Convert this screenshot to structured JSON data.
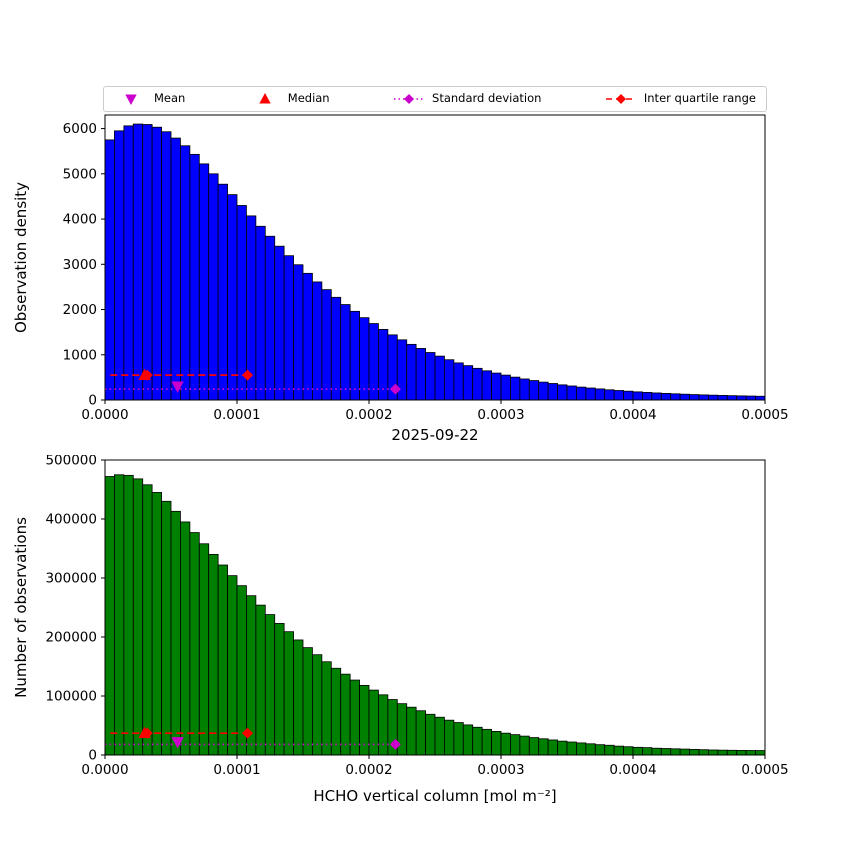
{
  "figure": {
    "date_title": "2025-09-22",
    "xlabel": "HCHO vertical column [mol m⁻²]",
    "legend": [
      {
        "label": "Mean",
        "type": "triangle-down",
        "color": "#cc00cc"
      },
      {
        "label": "Median",
        "type": "triangle-up",
        "color": "#ff0000"
      },
      {
        "label": "Standard deviation",
        "type": "diamond-dotted",
        "color": "#cc00cc"
      },
      {
        "label": "Inter quartile range",
        "type": "diamond-dashed",
        "color": "#ff0000"
      }
    ]
  },
  "chart_data": [
    {
      "type": "bar",
      "title": "",
      "xlabel": "",
      "ylabel": "Observation density",
      "bar_color": "#0000ff",
      "bar_edge": "#000000",
      "grid": false,
      "xlim": [
        0,
        0.0005
      ],
      "ylim": [
        0,
        6300
      ],
      "bin_start": 0,
      "bin_width": 7.1428571e-06,
      "values": [
        5750,
        5950,
        6060,
        6100,
        6090,
        6030,
        5930,
        5790,
        5620,
        5430,
        5220,
        5000,
        4770,
        4540,
        4300,
        4070,
        3840,
        3620,
        3400,
        3190,
        2990,
        2800,
        2610,
        2440,
        2270,
        2110,
        1960,
        1820,
        1690,
        1560,
        1440,
        1330,
        1230,
        1140,
        1050,
        970,
        890,
        820,
        760,
        700,
        645,
        595,
        550,
        505,
        465,
        430,
        395,
        365,
        335,
        310,
        285,
        265,
        245,
        225,
        210,
        195,
        180,
        168,
        156,
        146,
        137,
        128,
        120,
        113,
        107,
        101,
        96,
        91,
        87,
        83
      ],
      "x_ticks": [
        0,
        0.0001,
        0.0002,
        0.0003,
        0.0004,
        0.0005
      ],
      "x_tick_labels": [
        "0.0000",
        "0.0001",
        "0.0002",
        "0.0003",
        "0.0004",
        "0.0005"
      ],
      "y_ticks": [
        0,
        1000,
        2000,
        3000,
        4000,
        5000,
        6000
      ],
      "y_tick_labels": [
        "0",
        "1000",
        "2000",
        "3000",
        "4000",
        "5000",
        "6000"
      ],
      "markers": {
        "mean": {
          "x": 5.5e-05,
          "y": 300,
          "color": "#cc00cc"
        },
        "median": {
          "x": 3e-05,
          "y": 550,
          "color": "#ff0000"
        },
        "std": {
          "y": 240,
          "x1": 0.0,
          "x2": 0.00022,
          "diamonds": [
            0.00022
          ],
          "color": "#cc00cc"
        },
        "iqr": {
          "y": 550,
          "x1": 4e-06,
          "x2": 0.000108,
          "diamonds": [
            3.2e-05,
            0.000108
          ],
          "color": "#ff0000"
        }
      }
    },
    {
      "type": "bar",
      "title": "",
      "xlabel": "HCHO vertical column [mol m⁻²]",
      "ylabel": "Number of observations",
      "bar_color": "#008000",
      "bar_edge": "#000000",
      "grid": false,
      "xlim": [
        0,
        0.0005
      ],
      "ylim": [
        0,
        500000
      ],
      "bin_start": 0,
      "bin_width": 7.1428571e-06,
      "values": [
        472000,
        475000,
        474000,
        468000,
        458000,
        445000,
        430000,
        413000,
        395000,
        377000,
        358000,
        340000,
        322000,
        304000,
        287000,
        270000,
        254000,
        238000,
        223000,
        209000,
        195000,
        182000,
        170000,
        158000,
        147000,
        137000,
        127000,
        118000,
        110000,
        102000,
        94000,
        87000,
        81000,
        75000,
        69000,
        64000,
        59000,
        55000,
        51000,
        47000,
        43500,
        40000,
        37000,
        34500,
        32000,
        29500,
        27500,
        25500,
        23500,
        22000,
        20500,
        19000,
        17500,
        16500,
        15000,
        14000,
        13000,
        12500,
        11500,
        11000,
        10500,
        10000,
        9500,
        9000,
        8500,
        8200,
        8000,
        7800,
        7600,
        7500
      ],
      "x_ticks": [
        0,
        0.0001,
        0.0002,
        0.0003,
        0.0004,
        0.0005
      ],
      "x_tick_labels": [
        "0.0000",
        "0.0001",
        "0.0002",
        "0.0003",
        "0.0004",
        "0.0005"
      ],
      "y_ticks": [
        0,
        100000,
        200000,
        300000,
        400000,
        500000
      ],
      "y_tick_labels": [
        "0",
        "100000",
        "200000",
        "300000",
        "400000",
        "500000"
      ],
      "markers": {
        "mean": {
          "x": 5.5e-05,
          "y": 22000,
          "color": "#cc00cc"
        },
        "median": {
          "x": 3e-05,
          "y": 37000,
          "color": "#ff0000"
        },
        "std": {
          "y": 18000,
          "x1": 0.0,
          "x2": 0.00022,
          "diamonds": [
            0.00022
          ],
          "color": "#cc00cc"
        },
        "iqr": {
          "y": 37000,
          "x1": 4e-06,
          "x2": 0.000108,
          "diamonds": [
            3.2e-05,
            0.000108
          ],
          "color": "#ff0000"
        }
      }
    }
  ]
}
